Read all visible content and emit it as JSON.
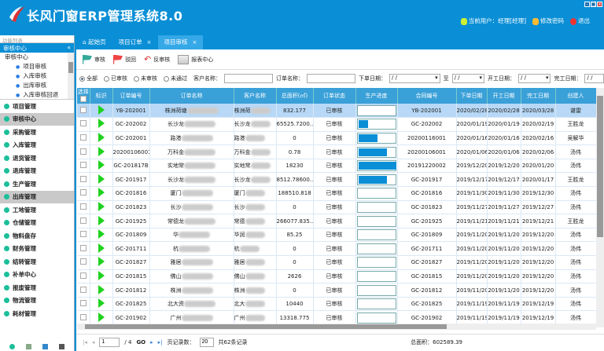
{
  "app": {
    "title": "长风门窗ERP管理系统8.0",
    "current_user": "当前用户：经理[经理]",
    "change_password": "修改密码",
    "logout": "退出"
  },
  "sidebar": {
    "header": "功能列表",
    "section": "审核中心",
    "tree_root": "审核中心",
    "tree_items": [
      "项目审核",
      "入库审核",
      "出库审核",
      "入库审核回退"
    ],
    "modules": [
      {
        "label": "项目管理"
      },
      {
        "label": "审核中心",
        "selected": true
      },
      {
        "label": "采购管理"
      },
      {
        "label": "入库管理"
      },
      {
        "label": "退货管理"
      },
      {
        "label": "退库管理"
      },
      {
        "label": "生产管理"
      },
      {
        "label": "出库管理",
        "selected": true
      },
      {
        "label": "工地管理"
      },
      {
        "label": "仓储管理"
      },
      {
        "label": "物料盘存"
      },
      {
        "label": "财务管理"
      },
      {
        "label": "结转管理"
      },
      {
        "label": "补单中心"
      },
      {
        "label": "报废管理"
      },
      {
        "label": "物流管理"
      },
      {
        "label": "耗材管理"
      }
    ]
  },
  "tabs": [
    {
      "label": "起始页"
    },
    {
      "label": "项目订单"
    },
    {
      "label": "项目审核",
      "active": true
    }
  ],
  "toolbar": {
    "approve": "审核",
    "reject": "驳回",
    "unapprove": "反审核",
    "report": "报表中心"
  },
  "filter": {
    "radios": [
      "全部",
      "已审核",
      "未审核",
      "未通过"
    ],
    "selected": "全部",
    "customer_label": "客户名称：",
    "order_label": "订单名称：",
    "order_date_label": "下单日期：",
    "to_label": "至",
    "start_date_label": "开工日期：",
    "finish_date_label": "完工日期：",
    "date_placeholder": "/ /"
  },
  "table": {
    "columns": [
      "选择",
      "标识",
      "订单编号",
      "订单名称",
      "客户名称",
      "总面积(㎡)",
      "订单状态",
      "生产进度",
      "合同编号",
      "下单日期",
      "开工日期",
      "完工日期",
      "创建人"
    ],
    "rows": [
      [
        "YB-202001",
        "株洲荷塘",
        "株洲荷",
        "832.177",
        "已审核",
        0,
        "YB-202001",
        "2020/02/28",
        "2020/02/28",
        "2020/03/28",
        "谌雷"
      ],
      [
        "GC-202002",
        "长沙龙",
        "长沙龙",
        "65525.7200...",
        "已审核",
        0.25,
        "GC-202002",
        "2020/01/19",
        "2020/01/19",
        "2020/02/19",
        "王胜龙"
      ],
      [
        "GC-202001",
        "路港",
        "路港",
        "0",
        "已审核",
        0.5,
        "20200116001",
        "2020/01/16",
        "2020/01/16",
        "2020/02/16",
        "吴解华"
      ],
      [
        "20200106001",
        "万科金",
        "万科金",
        "0.78",
        "已审核",
        0.75,
        "20200106001",
        "2020/01/06",
        "2020/01/06",
        "2020/02/06",
        "汤伟"
      ],
      [
        "GC-201817B",
        "实地常",
        "实地常",
        "18230",
        "已审核",
        1,
        "20191220002",
        "2019/12/20",
        "2019/12/20",
        "2020/01/20",
        "汤伟"
      ],
      [
        "GC-201917",
        "长沙龙",
        "长沙龙",
        "8512.78600...",
        "已审核",
        0.75,
        "GC-201917",
        "2019/12/17",
        "2019/12/17",
        "2020/01/17",
        "王胜龙"
      ],
      [
        "GC-201816",
        "厦门",
        "厦门",
        "188510.818",
        "已审核",
        0,
        "GC-201816",
        "2019/11/30",
        "2019/11/30",
        "2019/12/30",
        "汤伟"
      ],
      [
        "GC-201823",
        "长沙",
        "长沙",
        "0",
        "已审核",
        0,
        "GC-201823",
        "2019/11/27",
        "2019/11/27",
        "2019/12/27",
        "汤伟"
      ],
      [
        "GC-201925",
        "常德龙",
        "常德",
        "266077.835...",
        "已审核",
        0,
        "GC-201925",
        "2019/11/21",
        "2019/11/21",
        "2019/12/21",
        "王胜龙"
      ],
      [
        "GC-201809",
        "华",
        "华润",
        "85.25",
        "已审核",
        0,
        "GC-201809",
        "2019/11/20",
        "2019/11/20",
        "2019/12/20",
        "汤伟"
      ],
      [
        "GC-201711",
        "杭",
        "杭",
        "0",
        "已审核",
        0,
        "GC-201711",
        "2019/11/20",
        "2019/11/20",
        "2019/12/20",
        "汤伟"
      ],
      [
        "GC-201827",
        "雅居",
        "雅居",
        "0",
        "已审核",
        0,
        "GC-201827",
        "2019/11/20",
        "2019/11/20",
        "2019/12/20",
        "汤伟"
      ],
      [
        "GC-201815",
        "佛山",
        "佛山",
        "2626",
        "已审核",
        0,
        "GC-201815",
        "2019/11/20",
        "2019/11/20",
        "2019/12/20",
        "汤伟"
      ],
      [
        "GC-201812",
        "株洲",
        "株洲",
        "0",
        "已审核",
        0,
        "GC-201812",
        "2019/11/20",
        "2019/11/20",
        "2019/12/20",
        "汤伟"
      ],
      [
        "GC-201825",
        "北大资",
        "北大",
        "10440",
        "已审核",
        0,
        "GC-201825",
        "2019/11/19",
        "2019/11/19",
        "2019/12/19",
        "汤伟"
      ],
      [
        "GC-201902",
        "广州",
        "广州",
        "13318.775",
        "已审核",
        0,
        "GC-201902",
        "2019/11/19",
        "2019/11/19",
        "2019/12/19",
        "汤伟"
      ]
    ]
  },
  "pager": {
    "page": "1",
    "of": "/ 4",
    "go": "GO",
    "page_size_label": "页记录数：",
    "page_size": "20",
    "total_records": "共62条记录",
    "total_area": "总面积：602589.39"
  },
  "colors": {
    "brand": "#0a8fd6",
    "header_row": "#3aa0d8",
    "selected_row": "#b7d8f6",
    "progress": "#0a8fd6",
    "flag": "#1ed21e"
  }
}
